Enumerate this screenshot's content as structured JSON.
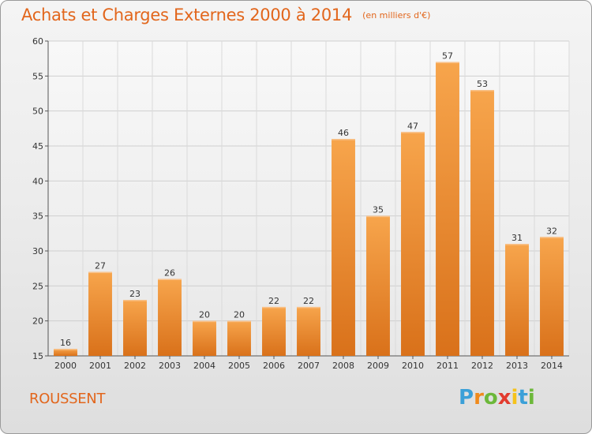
{
  "title": "Achats et Charges Externes 2000 à 2014",
  "subtitle": "(en milliers d'€)",
  "location": "ROUSSENT",
  "logo": {
    "letters": [
      "P",
      "r",
      "o",
      "x",
      "i",
      "t",
      "i"
    ],
    "colors": [
      "#3ba0d8",
      "#f08a1c",
      "#6cb83a",
      "#e23b2e",
      "#f5c21b",
      "#3ba0d8",
      "#6cb83a"
    ]
  },
  "chart_data": {
    "type": "bar",
    "title": "Achats et Charges Externes 2000 à 2014",
    "subtitle": "(en milliers d'€)",
    "categories": [
      "2000",
      "2001",
      "2002",
      "2003",
      "2004",
      "2005",
      "2006",
      "2007",
      "2008",
      "2009",
      "2010",
      "2011",
      "2012",
      "2013",
      "2014"
    ],
    "values": [
      16,
      27,
      23,
      26,
      20,
      20,
      22,
      22,
      46,
      35,
      47,
      57,
      53,
      31,
      32
    ],
    "ylim": [
      15,
      60
    ],
    "yticks": [
      15,
      20,
      25,
      30,
      35,
      40,
      45,
      50,
      55,
      60
    ],
    "grid": true,
    "bar_color": "#f0922e",
    "xlabel": "",
    "ylabel": ""
  }
}
